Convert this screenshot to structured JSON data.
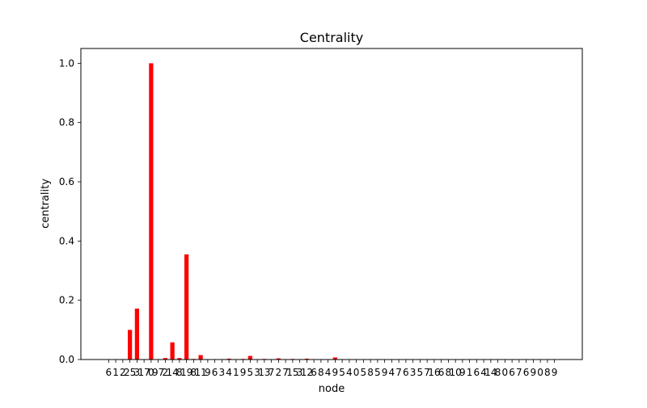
{
  "chart_data": {
    "type": "bar",
    "title": "Centrality",
    "xlabel": "node",
    "ylabel": "centrality",
    "ylim": [
      0,
      1.05
    ],
    "yticks": [
      "0.0",
      "0.2",
      "0.4",
      "0.6",
      "0.8",
      "1.0"
    ],
    "ytick_values": [
      0,
      0.2,
      0.4,
      0.6,
      0.8,
      1.0
    ],
    "bar_color": "#ff0000",
    "grid": false,
    "categories": [
      "6",
      "1",
      "2",
      "25",
      "3",
      "17",
      "0",
      "97",
      "2",
      "14",
      "8",
      "19",
      "8",
      "11",
      "9",
      "6",
      "3",
      "4",
      "1",
      "9",
      "5",
      "3",
      "13",
      "7",
      "2",
      "7",
      "15",
      "3",
      "12",
      "6",
      "8",
      "4",
      "9",
      "5",
      "4",
      "0",
      "5",
      "8",
      "5",
      "9",
      "4",
      "7",
      "6",
      "3",
      "5",
      "7",
      "16",
      "6",
      "8",
      "10",
      "9",
      "1",
      "6",
      "4",
      "14",
      "8",
      "0",
      "6",
      "7",
      "6",
      "9",
      "0",
      "8",
      "9"
    ],
    "values": [
      0,
      0,
      0,
      0.1,
      0.172,
      0,
      1.0,
      0,
      0.005,
      0.058,
      0.005,
      0.355,
      0.002,
      0.015,
      0,
      0,
      0,
      0.003,
      0,
      0.002,
      0.012,
      0,
      0.002,
      0,
      0.004,
      0,
      0.002,
      0,
      0.003,
      0,
      0.001,
      0,
      0.007,
      0,
      0,
      0,
      0.001,
      0,
      0,
      0,
      0,
      0,
      0,
      0,
      0,
      0,
      0,
      0,
      0,
      0,
      0,
      0,
      0,
      0,
      0,
      0,
      0,
      0,
      0,
      0,
      0,
      0,
      0,
      0
    ]
  }
}
